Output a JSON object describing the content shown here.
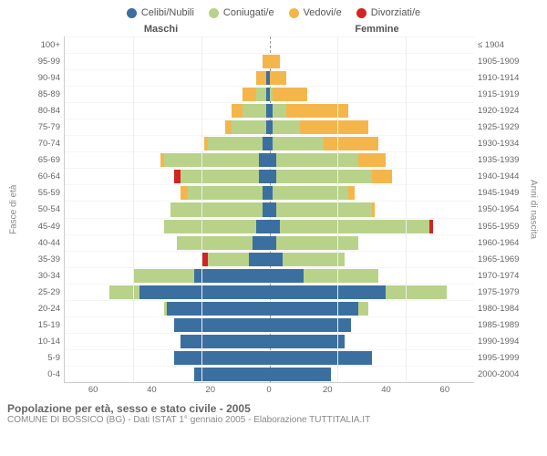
{
  "legend": [
    {
      "label": "Celibi/Nubili",
      "color": "#3b6fa0"
    },
    {
      "label": "Coniugati/e",
      "color": "#b8d28a"
    },
    {
      "label": "Vedovi/e",
      "color": "#f4b64a"
    },
    {
      "label": "Divorziati/e",
      "color": "#d32424"
    }
  ],
  "gender": {
    "left": "Maschi",
    "right": "Femmine"
  },
  "axis_titles": {
    "left": "Fasce di età",
    "right": "Anni di nascita"
  },
  "chart": {
    "type": "population-pyramid",
    "xlim": 60,
    "xticks": [
      60,
      40,
      20,
      0,
      20,
      40,
      60
    ],
    "background_color": "#ffffff",
    "grid_color": "#eeeeee",
    "center_line_color": "#999999",
    "label_fontsize": 9.5,
    "title_fontsize": 12,
    "rows": [
      {
        "age": "100+",
        "birth": "≤ 1904",
        "m": [
          0,
          0,
          0,
          0
        ],
        "f": [
          0,
          0,
          0,
          0
        ]
      },
      {
        "age": "95-99",
        "birth": "1905-1909",
        "m": [
          0,
          0,
          2,
          0
        ],
        "f": [
          0,
          0,
          3,
          0
        ]
      },
      {
        "age": "90-94",
        "birth": "1910-1914",
        "m": [
          1,
          0,
          3,
          0
        ],
        "f": [
          0,
          0,
          5,
          0
        ]
      },
      {
        "age": "85-89",
        "birth": "1915-1919",
        "m": [
          1,
          3,
          4,
          0
        ],
        "f": [
          0,
          1,
          10,
          0
        ]
      },
      {
        "age": "80-84",
        "birth": "1920-1924",
        "m": [
          1,
          7,
          3,
          0
        ],
        "f": [
          1,
          4,
          18,
          0
        ]
      },
      {
        "age": "75-79",
        "birth": "1925-1929",
        "m": [
          1,
          10,
          2,
          0
        ],
        "f": [
          1,
          8,
          20,
          0
        ]
      },
      {
        "age": "70-74",
        "birth": "1930-1934",
        "m": [
          2,
          16,
          1,
          0
        ],
        "f": [
          1,
          15,
          16,
          0
        ]
      },
      {
        "age": "65-69",
        "birth": "1935-1939",
        "m": [
          3,
          28,
          1,
          0
        ],
        "f": [
          2,
          24,
          8,
          0
        ]
      },
      {
        "age": "60-64",
        "birth": "1940-1944",
        "m": [
          3,
          23,
          0,
          2
        ],
        "f": [
          2,
          28,
          6,
          0
        ]
      },
      {
        "age": "55-59",
        "birth": "1945-1949",
        "m": [
          2,
          22,
          2,
          0
        ],
        "f": [
          1,
          22,
          2,
          0
        ]
      },
      {
        "age": "50-54",
        "birth": "1950-1954",
        "m": [
          2,
          27,
          0,
          0
        ],
        "f": [
          2,
          28,
          1,
          0
        ]
      },
      {
        "age": "45-49",
        "birth": "1955-1959",
        "m": [
          4,
          27,
          0,
          0
        ],
        "f": [
          3,
          44,
          0,
          1
        ]
      },
      {
        "age": "40-44",
        "birth": "1960-1964",
        "m": [
          5,
          22,
          0,
          0
        ],
        "f": [
          2,
          24,
          0,
          0
        ]
      },
      {
        "age": "35-39",
        "birth": "1965-1969",
        "m": [
          6,
          12,
          0,
          2
        ],
        "f": [
          4,
          18,
          0,
          0
        ]
      },
      {
        "age": "30-34",
        "birth": "1970-1974",
        "m": [
          22,
          18,
          0,
          0
        ],
        "f": [
          10,
          22,
          0,
          0
        ]
      },
      {
        "age": "25-29",
        "birth": "1975-1979",
        "m": [
          38,
          9,
          0,
          0
        ],
        "f": [
          34,
          18,
          0,
          0
        ]
      },
      {
        "age": "20-24",
        "birth": "1980-1984",
        "m": [
          30,
          1,
          0,
          0
        ],
        "f": [
          26,
          3,
          0,
          0
        ]
      },
      {
        "age": "15-19",
        "birth": "1985-1989",
        "m": [
          28,
          0,
          0,
          0
        ],
        "f": [
          24,
          0,
          0,
          0
        ]
      },
      {
        "age": "10-14",
        "birth": "1990-1994",
        "m": [
          26,
          0,
          0,
          0
        ],
        "f": [
          22,
          0,
          0,
          0
        ]
      },
      {
        "age": "5-9",
        "birth": "1995-1999",
        "m": [
          28,
          0,
          0,
          0
        ],
        "f": [
          30,
          0,
          0,
          0
        ]
      },
      {
        "age": "0-4",
        "birth": "2000-2004",
        "m": [
          22,
          0,
          0,
          0
        ],
        "f": [
          18,
          0,
          0,
          0
        ]
      }
    ]
  },
  "footer": {
    "title": "Popolazione per età, sesso e stato civile - 2005",
    "sub": "COMUNE DI BOSSICO (BG) - Dati ISTAT 1° gennaio 2005 - Elaborazione TUTTITALIA.IT"
  }
}
